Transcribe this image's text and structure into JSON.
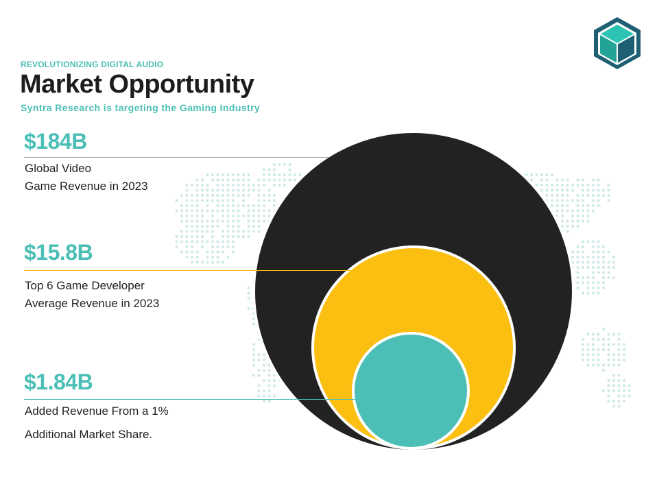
{
  "header": {
    "eyebrow": "REVOLUTIONIZING DIGITAL AUDIO",
    "title": "Market Opportunity",
    "subtitle": "Syntra Research is targeting the Gaming Industry"
  },
  "stats": [
    {
      "value": "$184B",
      "desc_line1": "Global Video",
      "desc_line2": "Game Revenue in 2023",
      "color": "#222222"
    },
    {
      "value": "$15.8B",
      "desc_line1": "Top 6 Game Developer",
      "desc_line2": "Average Revenue in 2023",
      "color": "#fbbf12"
    },
    {
      "value": "$1.84B",
      "desc_line1": "Added Revenue From a 1%",
      "desc_line2": "Additional Market Share.",
      "color": "#4bbfb5"
    }
  ],
  "colors": {
    "accent": "#4bbfb5",
    "outer_circle": "#222222",
    "middle_circle": "#fbbf12",
    "inner_circle": "#4bbfb5",
    "map_dots": "#cfe9e6"
  },
  "icons": {
    "logo": "hexagon-cube-logo-icon",
    "background": "world-map-dots"
  }
}
